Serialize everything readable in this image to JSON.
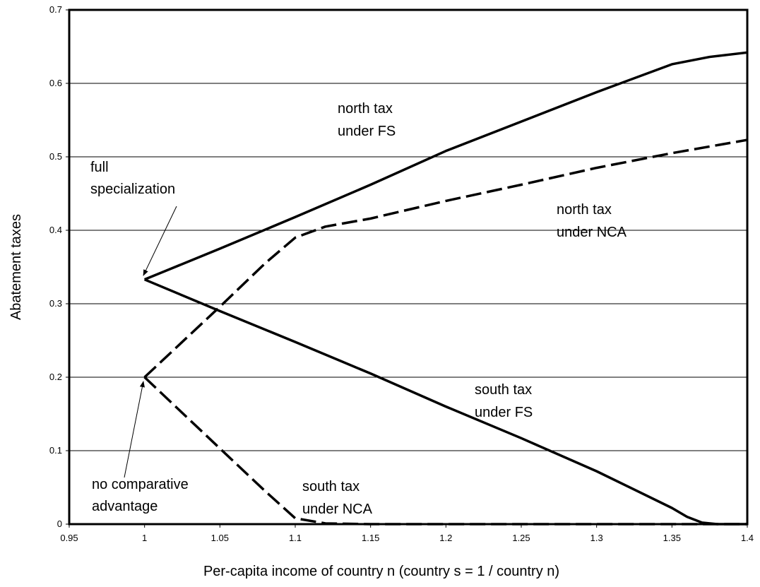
{
  "chart_data": {
    "type": "line",
    "xlabel": "Per-capita income of country n  (country s = 1 / country n)",
    "ylabel": "Abatement taxes",
    "xlim": [
      0.95,
      1.4
    ],
    "ylim": [
      0,
      0.7
    ],
    "xticks": [
      0.95,
      1,
      1.05,
      1.1,
      1.15,
      1.2,
      1.25,
      1.3,
      1.35,
      1.4
    ],
    "yticks": [
      0,
      0.1,
      0.2,
      0.3,
      0.4,
      0.5,
      0.6,
      0.7
    ],
    "grid": true,
    "series": [
      {
        "label_lines": [
          "north tax",
          "under FS"
        ],
        "color": "#000000",
        "dashed": false,
        "x": [
          1.0,
          1.05,
          1.1,
          1.15,
          1.2,
          1.25,
          1.3,
          1.35,
          1.375,
          1.4
        ],
        "values": [
          0.333,
          0.375,
          0.418,
          0.462,
          0.508,
          0.548,
          0.588,
          0.626,
          0.636,
          0.642
        ]
      },
      {
        "label_lines": [
          "south tax",
          "under FS"
        ],
        "color": "#000000",
        "dashed": false,
        "x": [
          1.0,
          1.05,
          1.1,
          1.15,
          1.2,
          1.25,
          1.3,
          1.35,
          1.36,
          1.37,
          1.38,
          1.4
        ],
        "values": [
          0.333,
          0.29,
          0.248,
          0.205,
          0.16,
          0.117,
          0.072,
          0.022,
          0.01,
          0.002,
          0,
          0
        ]
      },
      {
        "label_lines": [
          "north tax",
          "under NCA"
        ],
        "color": "#000000",
        "dashed": true,
        "x": [
          1.0,
          1.05,
          1.08,
          1.1,
          1.12,
          1.15,
          1.2,
          1.25,
          1.3,
          1.35,
          1.4
        ],
        "values": [
          0.2,
          0.296,
          0.355,
          0.39,
          0.405,
          0.416,
          0.44,
          0.462,
          0.485,
          0.505,
          0.523
        ]
      },
      {
        "label_lines": [
          "south tax",
          "under NCA"
        ],
        "color": "#000000",
        "dashed": true,
        "x": [
          1.0,
          1.05,
          1.08,
          1.1,
          1.12,
          1.15,
          1.4
        ],
        "values": [
          0.2,
          0.103,
          0.045,
          0.008,
          0.001,
          0,
          0
        ]
      }
    ],
    "annotations": [
      {
        "lines": [
          "full",
          "specialization"
        ]
      },
      {
        "lines": [
          "no comparative",
          "advantage"
        ]
      }
    ]
  }
}
